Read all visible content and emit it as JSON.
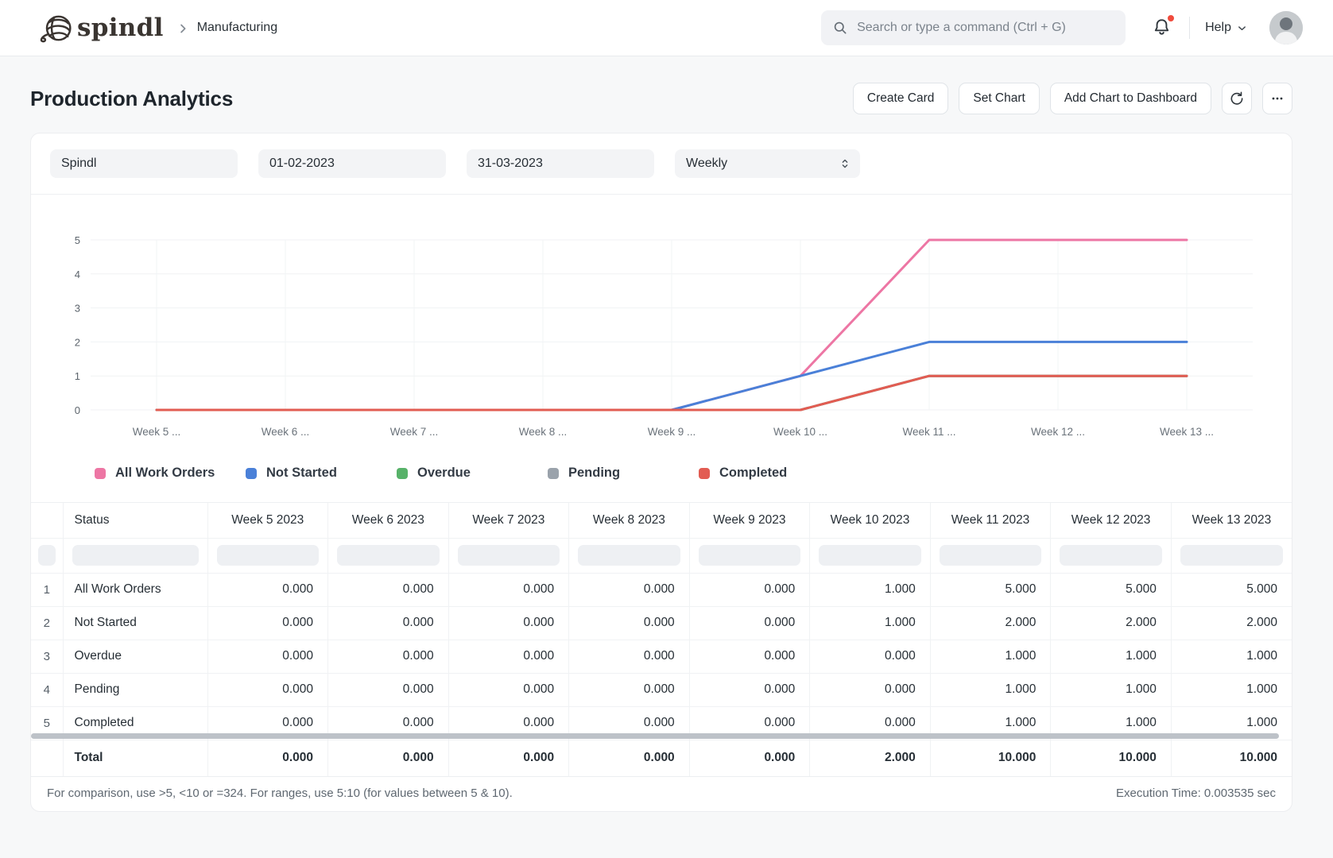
{
  "nav": {
    "logo_text": "spindl",
    "breadcrumb": "Manufacturing",
    "search_placeholder": "Search or type a command (Ctrl + G)",
    "help_label": "Help"
  },
  "header": {
    "title": "Production Analytics",
    "buttons": [
      "Create Card",
      "Set Chart",
      "Add Chart to Dashboard"
    ]
  },
  "filters": {
    "company": "Spindl",
    "from_date": "01-02-2023",
    "to_date": "31-03-2023",
    "frequency": "Weekly"
  },
  "chart_data": {
    "type": "line",
    "x": [
      "Week 5 ...",
      "Week 6 ...",
      "Week 7 ...",
      "Week 8 ...",
      "Week 9 ...",
      "Week 10 ...",
      "Week 11 ...",
      "Week 12 ...",
      "Week 13 ..."
    ],
    "ylim": [
      0,
      5
    ],
    "yticks": [
      0,
      1,
      2,
      3,
      4,
      5
    ],
    "grid": true,
    "legend_position": "bottom",
    "series": [
      {
        "name": "All Work Orders",
        "color": "#ed76a4",
        "values": [
          0,
          0,
          0,
          0,
          0,
          1,
          5,
          5,
          5
        ]
      },
      {
        "name": "Not Started",
        "color": "#4a80d8",
        "values": [
          0,
          0,
          0,
          0,
          0,
          1,
          2,
          2,
          2
        ]
      },
      {
        "name": "Overdue",
        "color": "#57b269",
        "values": [
          0,
          0,
          0,
          0,
          0,
          0,
          1,
          1,
          1
        ]
      },
      {
        "name": "Pending",
        "color": "#9aa2ab",
        "values": [
          0,
          0,
          0,
          0,
          0,
          0,
          1,
          1,
          1
        ]
      },
      {
        "name": "Completed",
        "color": "#e25c52",
        "values": [
          0,
          0,
          0,
          0,
          0,
          0,
          1,
          1,
          1
        ]
      }
    ]
  },
  "table": {
    "columns": [
      "Status",
      "Week 5 2023",
      "Week 6 2023",
      "Week 7 2023",
      "Week 8 2023",
      "Week 9 2023",
      "Week 10 2023",
      "Week 11 2023",
      "Week 12 2023",
      "Week 13 2023"
    ],
    "rows": [
      {
        "num": "1",
        "status": "All Work Orders",
        "values": [
          "0.000",
          "0.000",
          "0.000",
          "0.000",
          "0.000",
          "1.000",
          "5.000",
          "5.000",
          "5.000"
        ]
      },
      {
        "num": "2",
        "status": "Not Started",
        "values": [
          "0.000",
          "0.000",
          "0.000",
          "0.000",
          "0.000",
          "1.000",
          "2.000",
          "2.000",
          "2.000"
        ]
      },
      {
        "num": "3",
        "status": "Overdue",
        "values": [
          "0.000",
          "0.000",
          "0.000",
          "0.000",
          "0.000",
          "0.000",
          "1.000",
          "1.000",
          "1.000"
        ]
      },
      {
        "num": "4",
        "status": "Pending",
        "values": [
          "0.000",
          "0.000",
          "0.000",
          "0.000",
          "0.000",
          "0.000",
          "1.000",
          "1.000",
          "1.000"
        ]
      },
      {
        "num": "5",
        "status": "Completed",
        "values": [
          "0.000",
          "0.000",
          "0.000",
          "0.000",
          "0.000",
          "0.000",
          "1.000",
          "1.000",
          "1.000"
        ]
      }
    ],
    "total": {
      "label": "Total",
      "values": [
        "0.000",
        "0.000",
        "0.000",
        "0.000",
        "0.000",
        "2.000",
        "10.000",
        "10.000",
        "10.000"
      ]
    }
  },
  "footer": {
    "hint": "For comparison, use >5, <10 or =324. For ranges, use 5:10 (for values between 5 & 10).",
    "execution_time": "Execution Time: 0.003535 sec"
  }
}
